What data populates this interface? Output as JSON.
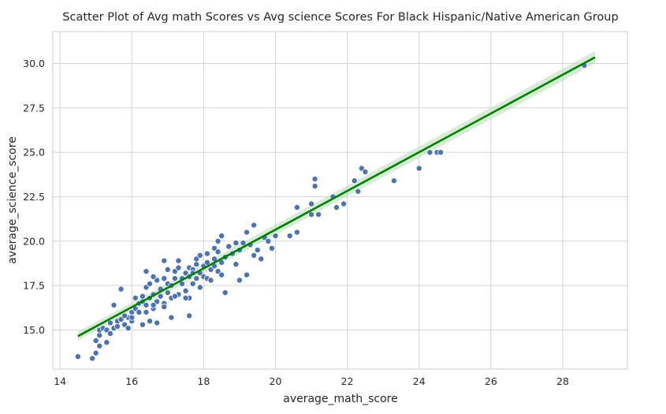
{
  "chart_data": {
    "type": "scatter",
    "title": "Scatter Plot of Avg math Scores vs  Avg science Scores For Black Hispanic/Native American Group",
    "xlabel": "average_math_score",
    "ylabel": "average_science_score",
    "xlim": [
      13.8,
      29.8
    ],
    "ylim": [
      12.8,
      31.8
    ],
    "xticks": [
      14,
      16,
      18,
      20,
      22,
      24,
      26,
      28
    ],
    "xtick_labels": [
      "14",
      "16",
      "18",
      "20",
      "22",
      "24",
      "26",
      "28"
    ],
    "yticks": [
      15.0,
      17.5,
      20.0,
      22.5,
      25.0,
      27.5,
      30.0
    ],
    "ytick_labels": [
      "15.0",
      "17.5",
      "20.0",
      "22.5",
      "25.0",
      "27.5",
      "30.0"
    ],
    "grid": true,
    "colors": {
      "points": "#4c72b0",
      "regression": "#008000",
      "ci_band": "#b5dcb5"
    },
    "regression": {
      "x": [
        14.5,
        28.9
      ],
      "y": [
        14.65,
        30.35
      ],
      "ci_halfwidth": [
        0.25,
        0.35
      ]
    },
    "points": [
      [
        14.5,
        13.5
      ],
      [
        14.9,
        13.4
      ],
      [
        15.0,
        13.7
      ],
      [
        15.1,
        14.1
      ],
      [
        15.3,
        14.3
      ],
      [
        15.0,
        14.4
      ],
      [
        15.1,
        14.7
      ],
      [
        15.1,
        15.0
      ],
      [
        15.2,
        15.1
      ],
      [
        15.3,
        15.0
      ],
      [
        15.4,
        14.8
      ],
      [
        15.5,
        15.1
      ],
      [
        15.4,
        15.4
      ],
      [
        15.6,
        15.2
      ],
      [
        15.6,
        15.5
      ],
      [
        15.7,
        15.6
      ],
      [
        15.8,
        15.3
      ],
      [
        15.9,
        15.7
      ],
      [
        16.0,
        15.5
      ],
      [
        15.5,
        16.4
      ],
      [
        15.7,
        17.3
      ],
      [
        15.8,
        15.8
      ],
      [
        16.0,
        16.0
      ],
      [
        16.1,
        16.2
      ],
      [
        16.2,
        16.5
      ],
      [
        16.1,
        16.8
      ],
      [
        16.3,
        16.6
      ],
      [
        16.4,
        16.0
      ],
      [
        15.9,
        15.1
      ],
      [
        16.0,
        15.7
      ],
      [
        16.3,
        15.3
      ],
      [
        16.5,
        15.5
      ],
      [
        16.7,
        15.4
      ],
      [
        16.4,
        16.4
      ],
      [
        16.5,
        16.8
      ],
      [
        16.4,
        17.4
      ],
      [
        16.5,
        17.6
      ],
      [
        16.6,
        17.0
      ],
      [
        16.6,
        16.2
      ],
      [
        16.7,
        16.6
      ],
      [
        16.8,
        16.9
      ],
      [
        16.8,
        17.3
      ],
      [
        16.7,
        17.8
      ],
      [
        16.6,
        18.0
      ],
      [
        16.4,
        18.3
      ],
      [
        16.9,
        17.9
      ],
      [
        16.9,
        18.9
      ],
      [
        17.0,
        18.4
      ],
      [
        17.0,
        17.6
      ],
      [
        17.0,
        17.1
      ],
      [
        16.9,
        16.5
      ],
      [
        17.1,
        16.8
      ],
      [
        17.1,
        17.5
      ],
      [
        17.2,
        17.9
      ],
      [
        17.2,
        18.3
      ],
      [
        17.3,
        17.0
      ],
      [
        17.3,
        18.5
      ],
      [
        17.3,
        18.9
      ],
      [
        17.4,
        17.6
      ],
      [
        17.5,
        18.2
      ],
      [
        17.5,
        17.2
      ],
      [
        17.6,
        18.0
      ],
      [
        17.6,
        18.5
      ],
      [
        17.6,
        16.8
      ],
      [
        17.7,
        17.6
      ],
      [
        17.7,
        18.4
      ],
      [
        17.8,
        17.9
      ],
      [
        17.8,
        18.7
      ],
      [
        17.8,
        19.0
      ],
      [
        17.9,
        17.4
      ],
      [
        17.9,
        18.2
      ],
      [
        17.9,
        19.2
      ],
      [
        18.0,
        18.0
      ],
      [
        18.0,
        18.6
      ],
      [
        18.1,
        17.9
      ],
      [
        18.1,
        19.3
      ],
      [
        18.2,
        18.4
      ],
      [
        18.2,
        17.8
      ],
      [
        18.3,
        19.0
      ],
      [
        18.3,
        18.6
      ],
      [
        18.3,
        19.6
      ],
      [
        18.4,
        18.3
      ],
      [
        18.4,
        20.0
      ],
      [
        18.4,
        19.4
      ],
      [
        18.5,
        18.8
      ],
      [
        18.5,
        18.1
      ],
      [
        18.6,
        19.1
      ],
      [
        18.6,
        17.1
      ],
      [
        18.5,
        20.3
      ],
      [
        18.7,
        19.7
      ],
      [
        18.8,
        19.3
      ],
      [
        18.9,
        18.7
      ],
      [
        18.9,
        19.9
      ],
      [
        19.0,
        19.5
      ],
      [
        19.1,
        19.9
      ],
      [
        19.0,
        17.8
      ],
      [
        19.3,
        19.8
      ],
      [
        19.2,
        18.1
      ],
      [
        19.2,
        20.5
      ],
      [
        19.4,
        20.9
      ],
      [
        19.4,
        19.2
      ],
      [
        19.5,
        19.5
      ],
      [
        19.6,
        19.0
      ],
      [
        19.7,
        20.2
      ],
      [
        19.8,
        20.0
      ],
      [
        20.0,
        20.3
      ],
      [
        19.9,
        19.6
      ],
      [
        20.4,
        20.3
      ],
      [
        20.6,
        20.5
      ],
      [
        20.6,
        21.9
      ],
      [
        21.0,
        21.5
      ],
      [
        21.0,
        22.1
      ],
      [
        21.1,
        23.5
      ],
      [
        21.1,
        23.1
      ],
      [
        21.2,
        21.5
      ],
      [
        21.6,
        22.5
      ],
      [
        21.7,
        21.9
      ],
      [
        21.9,
        22.1
      ],
      [
        22.2,
        23.4
      ],
      [
        22.3,
        22.8
      ],
      [
        22.4,
        24.1
      ],
      [
        22.5,
        23.9
      ],
      [
        23.3,
        23.4
      ],
      [
        24.0,
        24.1
      ],
      [
        24.3,
        25.0
      ],
      [
        24.5,
        25.0
      ],
      [
        24.6,
        25.0
      ],
      [
        28.6,
        29.9
      ],
      [
        16.2,
        16.0
      ],
      [
        16.3,
        16.9
      ],
      [
        16.6,
        16.4
      ],
      [
        17.2,
        16.9
      ],
      [
        17.4,
        17.9
      ],
      [
        17.1,
        15.7
      ],
      [
        17.6,
        15.8
      ],
      [
        16.9,
        16.3
      ],
      [
        17.5,
        16.8
      ],
      [
        18.1,
        18.8
      ],
      [
        17.7,
        18.2
      ]
    ]
  }
}
